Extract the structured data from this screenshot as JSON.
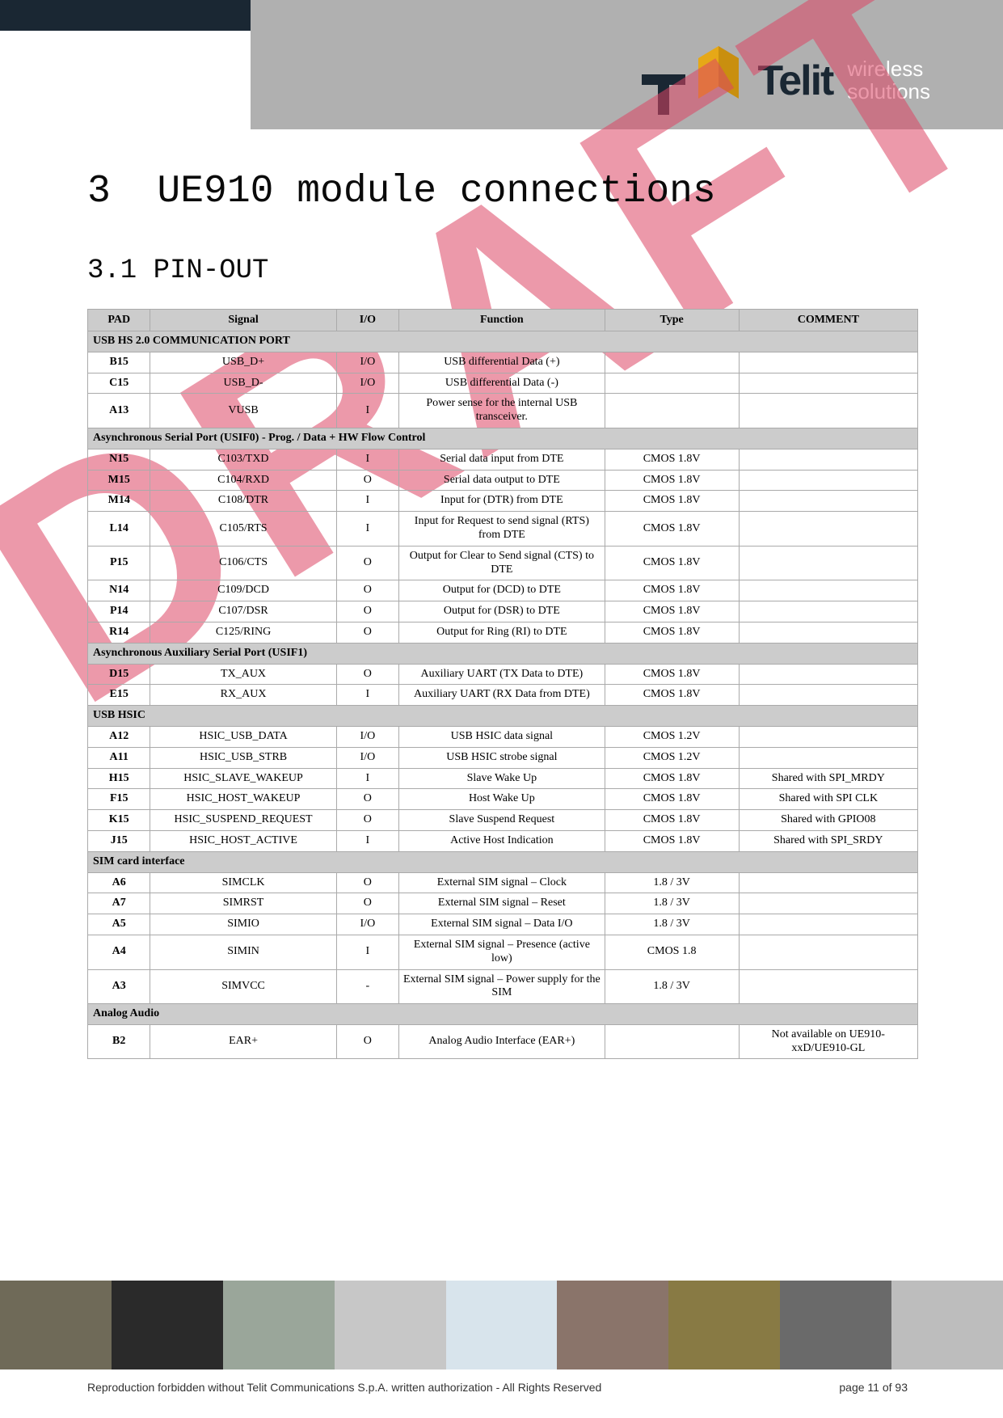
{
  "header": {
    "logo_text": "Telit",
    "tagline1": "wireless",
    "tagline2": "solutions"
  },
  "watermark": "DRAFT",
  "title": {
    "num": "3",
    "text": "UE910 module connections"
  },
  "subtitle": {
    "num": "3.1",
    "text": "PIN-OUT"
  },
  "columns": [
    "PAD",
    "Signal",
    "I/O",
    "Function",
    "Type",
    "COMMENT"
  ],
  "sections": [
    {
      "label": "USB HS 2.0 COMMUNICATION PORT",
      "rows": [
        {
          "pad": "B15",
          "signal": "USB_D+",
          "io": "I/O",
          "function": "USB differential Data (+)",
          "type": "",
          "comment": ""
        },
        {
          "pad": "C15",
          "signal": "USB_D-",
          "io": "I/O",
          "function": "USB differential Data (-)",
          "type": "",
          "comment": ""
        },
        {
          "pad": "A13",
          "signal": "VUSB",
          "io": "I",
          "function": "Power sense for the internal USB transceiver.",
          "type": "",
          "comment": ""
        }
      ]
    },
    {
      "label": "Asynchronous Serial Port (USIF0)  - Prog. / Data + HW Flow Control",
      "rows": [
        {
          "pad": "N15",
          "signal": "C103/TXD",
          "io": "I",
          "function": "Serial data input from DTE",
          "type": "CMOS 1.8V",
          "comment": ""
        },
        {
          "pad": "M15",
          "signal": "C104/RXD",
          "io": "O",
          "function": "Serial data output to DTE",
          "type": "CMOS 1.8V",
          "comment": ""
        },
        {
          "pad": "M14",
          "signal": "C108/DTR",
          "io": "I",
          "function": "Input for (DTR) from DTE",
          "type": "CMOS 1.8V",
          "comment": ""
        },
        {
          "pad": "L14",
          "signal": "C105/RTS",
          "io": "I",
          "function": "Input for Request to send signal (RTS) from DTE",
          "type": "CMOS 1.8V",
          "comment": ""
        },
        {
          "pad": "P15",
          "signal": "C106/CTS",
          "io": "O",
          "function": "Output for Clear to Send signal (CTS) to DTE",
          "type": "CMOS 1.8V",
          "comment": ""
        },
        {
          "pad": "N14",
          "signal": "C109/DCD",
          "io": "O",
          "function": "Output for  (DCD) to DTE",
          "type": "CMOS 1.8V",
          "comment": ""
        },
        {
          "pad": "P14",
          "signal": "C107/DSR",
          "io": "O",
          "function": "Output for  (DSR) to DTE",
          "type": "CMOS 1.8V",
          "comment": ""
        },
        {
          "pad": "R14",
          "signal": "C125/RING",
          "io": "O",
          "function": "Output for Ring (RI) to DTE",
          "type": "CMOS 1.8V",
          "comment": ""
        }
      ]
    },
    {
      "label": "Asynchronous Auxiliary Serial Port (USIF1)",
      "rows": [
        {
          "pad": "D15",
          "signal": "TX_AUX",
          "io": "O",
          "function": "Auxiliary UART (TX Data to DTE)",
          "type": "CMOS 1.8V",
          "comment": ""
        },
        {
          "pad": "E15",
          "signal": "RX_AUX",
          "io": "I",
          "function": "Auxiliary UART (RX Data from DTE)",
          "type": "CMOS 1.8V",
          "comment": ""
        }
      ]
    },
    {
      "label": "USB HSIC",
      "rows": [
        {
          "pad": "A12",
          "signal": "HSIC_USB_DATA",
          "io": "I/O",
          "function": "USB HSIC data signal",
          "type": "CMOS 1.2V",
          "comment": ""
        },
        {
          "pad": "A11",
          "signal": "HSIC_USB_STRB",
          "io": "I/O",
          "function": "USB HSIC strobe signal",
          "type": "CMOS 1.2V",
          "comment": ""
        },
        {
          "pad": "H15",
          "signal": "HSIC_SLAVE_WAKEUP",
          "io": "I",
          "function": "Slave Wake Up",
          "type": "CMOS 1.8V",
          "comment": "Shared with SPI_MRDY"
        },
        {
          "pad": "F15",
          "signal": "HSIC_HOST_WAKEUP",
          "io": "O",
          "function": "Host Wake Up",
          "type": "CMOS 1.8V",
          "comment": "Shared with SPI CLK"
        },
        {
          "pad": "K15",
          "signal": "HSIC_SUSPEND_REQUEST",
          "io": "O",
          "function": "Slave Suspend Request",
          "type": "CMOS 1.8V",
          "comment": "Shared with GPIO08"
        },
        {
          "pad": "J15",
          "signal": "HSIC_HOST_ACTIVE",
          "io": "I",
          "function": "Active Host Indication",
          "type": "CMOS 1.8V",
          "comment": "Shared with SPI_SRDY"
        }
      ]
    },
    {
      "label": "SIM card interface",
      "rows": [
        {
          "pad": "A6",
          "signal": "SIMCLK",
          "io": "O",
          "function": "External SIM signal – Clock",
          "type": "1.8 / 3V",
          "comment": ""
        },
        {
          "pad": "A7",
          "signal": "SIMRST",
          "io": "O",
          "function": "External SIM signal – Reset",
          "type": "1.8 / 3V",
          "comment": ""
        },
        {
          "pad": "A5",
          "signal": "SIMIO",
          "io": "I/O",
          "function": "External SIM signal – Data I/O",
          "type": "1.8 / 3V",
          "comment": ""
        },
        {
          "pad": "A4",
          "signal": "SIMIN",
          "io": "I",
          "function": "External SIM signal – Presence (active low)",
          "type": "CMOS 1.8",
          "comment": ""
        },
        {
          "pad": "A3",
          "signal": "SIMVCC",
          "io": "-",
          "function": "External SIM signal – Power supply for the SIM",
          "type": "1.8 / 3V",
          "comment": ""
        }
      ]
    },
    {
      "label": "Analog Audio",
      "rows": [
        {
          "pad": "B2",
          "signal": "EAR+",
          "io": "O",
          "function": "Analog Audio Interface (EAR+)",
          "type": "",
          "comment": "Not available on UE910-xxD/UE910-GL"
        }
      ]
    }
  ],
  "footer": {
    "copyright": "Reproduction forbidden without Telit Communications S.p.A. written authorization - All Rights Reserved",
    "page": "page 11 of 93"
  },
  "footer_colors": [
    "#6f6a58",
    "#2a2a2a",
    "#9aa69a",
    "#c7c7c7",
    "#d8e4ec",
    "#8a746a",
    "#887a44",
    "#6a6a6a",
    "#bdbdbd"
  ]
}
